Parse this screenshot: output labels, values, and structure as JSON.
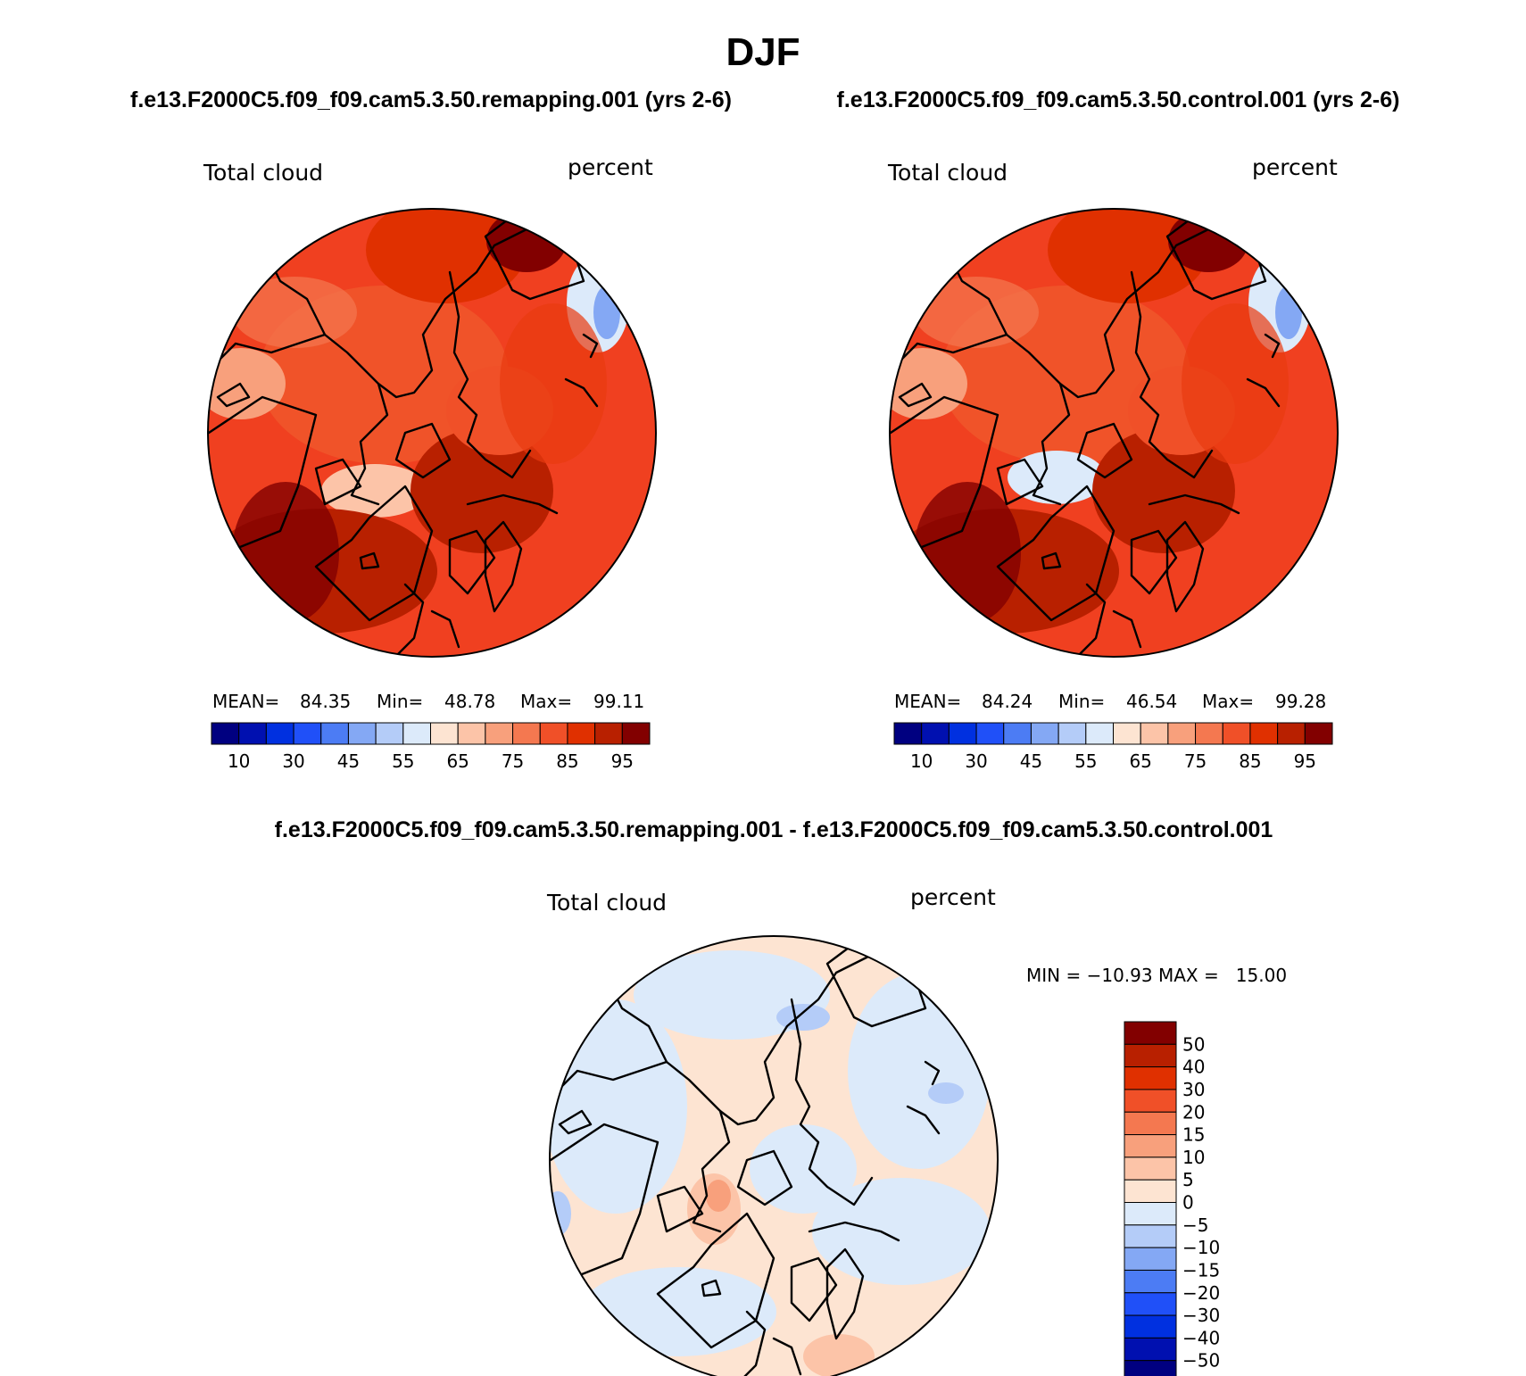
{
  "chart_data": {
    "type": "heatmap",
    "title": "DJF",
    "panels": [
      {
        "id": "remapping",
        "title": "f.e13.F2000C5.f09_f09.cam5.3.50.remapping.001 (yrs 2-6)",
        "left_label": "Total cloud",
        "right_label": "percent",
        "stats": {
          "mean_label": "MEAN=",
          "mean": "84.35",
          "min_label": "Min=",
          "min": "48.78",
          "max_label": "Max=",
          "max": "99.11"
        },
        "projection": "north polar stereographic"
      },
      {
        "id": "control",
        "title": "f.e13.F2000C5.f09_f09.cam5.3.50.control.001 (yrs 2-6)",
        "left_label": "Total cloud",
        "right_label": "percent",
        "stats": {
          "mean_label": "MEAN=",
          "mean": "84.24",
          "min_label": "Min=",
          "min": "46.54",
          "max_label": "Max=",
          "max": "99.28"
        },
        "projection": "north polar stereographic"
      },
      {
        "id": "difference",
        "title": "f.e13.F2000C5.f09_f09.cam5.3.50.remapping.001 - f.e13.F2000C5.f09_f09.cam5.3.50.control.001",
        "left_label": "Total cloud",
        "right_label": "percent",
        "stats": {
          "text": "MIN = −10.93 MAX =   15.00"
        },
        "projection": "north polar stereographic"
      }
    ],
    "colorbar_abs": {
      "orientation": "horizontal",
      "colors": [
        "#000080",
        "#0010b0",
        "#0030e0",
        "#2050f8",
        "#4c7cf4",
        "#84a8f4",
        "#b4ccf8",
        "#dceafa",
        "#fde4d2",
        "#fcc4a8",
        "#f8a07c",
        "#f47850",
        "#f05028",
        "#e03000",
        "#b82000",
        "#820000"
      ],
      "tick_labels": [
        "10",
        "30",
        "45",
        "55",
        "65",
        "75",
        "85",
        "95"
      ]
    },
    "colorbar_diff": {
      "orientation": "vertical",
      "colors": [
        "#820000",
        "#b82000",
        "#e03000",
        "#f05028",
        "#f47850",
        "#f8a07c",
        "#fcc4a8",
        "#fde4d2",
        "#dceafa",
        "#b4ccf8",
        "#84a8f4",
        "#4c7cf4",
        "#2050f8",
        "#0030e0",
        "#0010b0",
        "#000080"
      ],
      "tick_labels": [
        "50",
        "40",
        "30",
        "20",
        "15",
        "10",
        "5",
        "0",
        "−5",
        "−10",
        "−15",
        "−20",
        "−30",
        "−40",
        "−50"
      ]
    }
  }
}
